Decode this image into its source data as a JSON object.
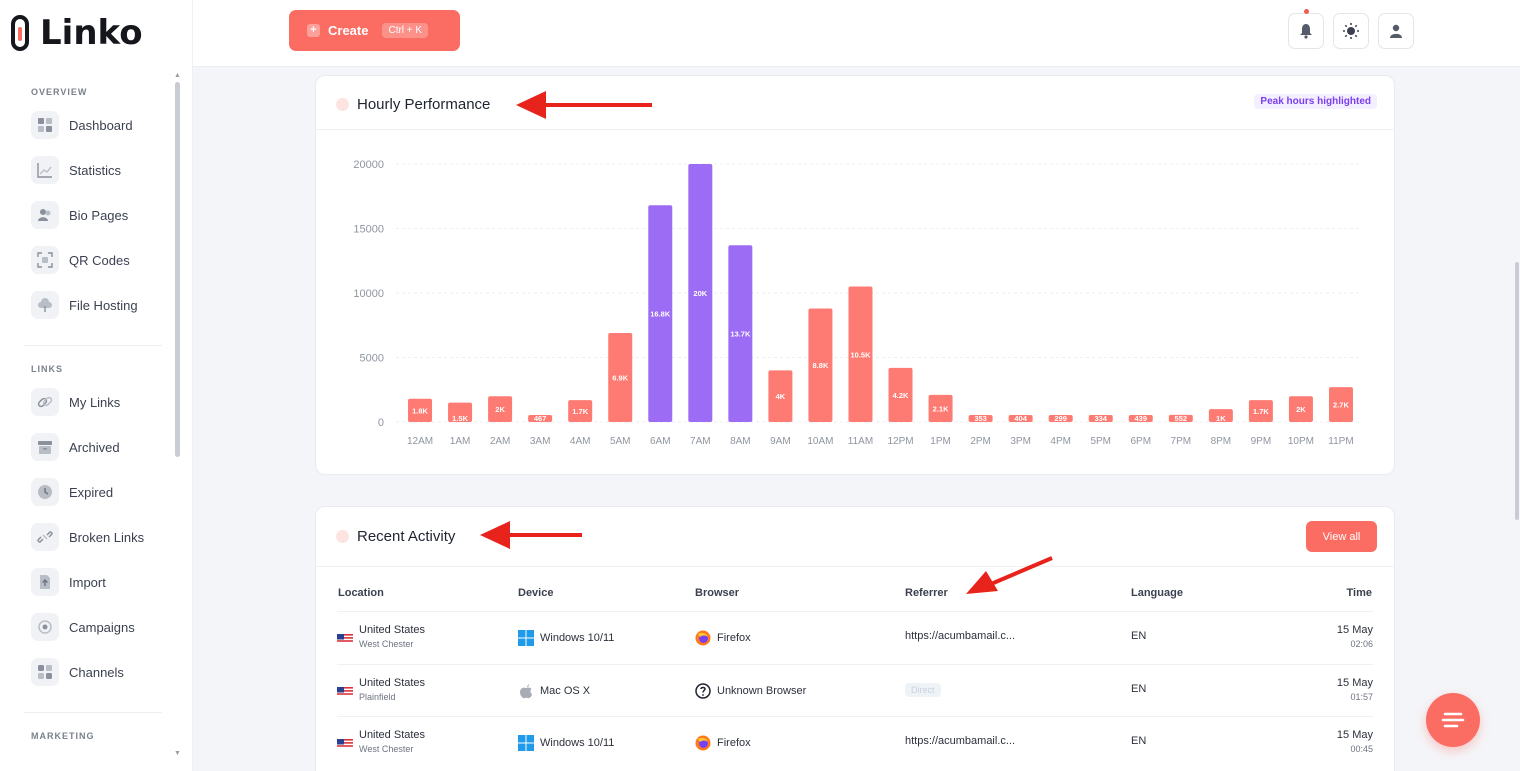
{
  "brand": {
    "name": "Linko",
    "accent": "#fb6d63",
    "purple": "#9c6cf5"
  },
  "sidebar": {
    "sections": [
      {
        "label": "OVERVIEW"
      },
      {
        "label": "LINKS"
      },
      {
        "label": "MARKETING"
      }
    ],
    "items": [
      {
        "label": "Dashboard",
        "icon": "grid-icon"
      },
      {
        "label": "Statistics",
        "icon": "chart-line-icon"
      },
      {
        "label": "Bio Pages",
        "icon": "users-icon"
      },
      {
        "label": "QR Codes",
        "icon": "qr-icon"
      },
      {
        "label": "File Hosting",
        "icon": "cloud-icon"
      },
      {
        "label": "My Links",
        "icon": "link-icon"
      },
      {
        "label": "Archived",
        "icon": "archive-icon"
      },
      {
        "label": "Expired",
        "icon": "clock-icon"
      },
      {
        "label": "Broken Links",
        "icon": "broken-link-icon"
      },
      {
        "label": "Import",
        "icon": "import-icon"
      },
      {
        "label": "Campaigns",
        "icon": "target-icon"
      },
      {
        "label": "Channels",
        "icon": "channels-icon"
      }
    ]
  },
  "topbar": {
    "create_label": "Create",
    "create_shortcut": "Ctrl + K",
    "icons": [
      "bell-icon",
      "sun-icon",
      "user-icon"
    ]
  },
  "hourly": {
    "title": "Hourly Performance",
    "badge": "Peak hours highlighted"
  },
  "chart_data": {
    "type": "bar",
    "title": "Hourly Performance",
    "categories": [
      "12AM",
      "1AM",
      "2AM",
      "3AM",
      "4AM",
      "5AM",
      "6AM",
      "7AM",
      "8AM",
      "9AM",
      "10AM",
      "11AM",
      "12PM",
      "1PM",
      "2PM",
      "3PM",
      "4PM",
      "5PM",
      "6PM",
      "7PM",
      "8PM",
      "9PM",
      "10PM",
      "11PM"
    ],
    "values": [
      1800,
      1500,
      2000,
      467,
      1700,
      6900,
      16800,
      20000,
      13700,
      4000,
      8800,
      10500,
      4200,
      2100,
      353,
      404,
      299,
      334,
      439,
      552,
      1000,
      1700,
      2000,
      2700
    ],
    "data_labels": [
      "1.8K",
      "1.5K",
      "2K",
      "467",
      "1.7K",
      "6.9K",
      "16.8K",
      "20K",
      "13.7K",
      "4K",
      "8.8K",
      "10.5K",
      "4.2K",
      "2.1K",
      "353",
      "404",
      "299",
      "334",
      "439",
      "552",
      "1K",
      "1.7K",
      "2K",
      "2.7K"
    ],
    "peak": [
      false,
      false,
      false,
      false,
      false,
      false,
      true,
      true,
      true,
      false,
      false,
      false,
      false,
      false,
      false,
      false,
      false,
      false,
      false,
      false,
      false,
      false,
      false,
      false
    ],
    "yticks": [
      "0",
      "5000",
      "10000",
      "15000",
      "20000"
    ],
    "ylim": [
      0,
      20000
    ],
    "grid": true,
    "colors": {
      "normal": "#fd7b72",
      "peak": "#9c6cf5"
    }
  },
  "activity": {
    "title": "Recent Activity",
    "view_all": "View all",
    "columns": [
      "Location",
      "Device",
      "Browser",
      "Referrer",
      "Language",
      "Time"
    ],
    "rows": [
      {
        "country": "United States",
        "city": "West Chester",
        "device": "Windows 10/11",
        "device_icon": "windows-icon",
        "browser": "Firefox",
        "browser_icon": "firefox-icon",
        "referrer": "https://acumbamail.c...",
        "language": "EN",
        "date": "15 May",
        "time": "02:06"
      },
      {
        "country": "United States",
        "city": "Plainfield",
        "device": "Mac OS X",
        "device_icon": "apple-icon",
        "browser": "Unknown Browser",
        "browser_icon": "question-icon",
        "referrer": "Direct",
        "language": "EN",
        "date": "15 May",
        "time": "01:57"
      },
      {
        "country": "United States",
        "city": "West Chester",
        "device": "Windows 10/11",
        "device_icon": "windows-icon",
        "browser": "Firefox",
        "browser_icon": "firefox-icon",
        "referrer": "https://acumbamail.c...",
        "language": "EN",
        "date": "15 May",
        "time": "00:45"
      }
    ]
  }
}
